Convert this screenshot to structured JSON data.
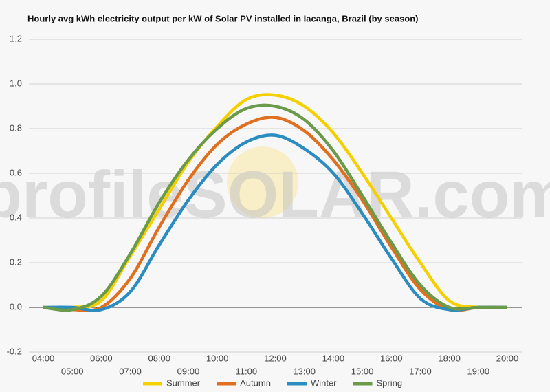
{
  "chart_data": {
    "type": "line",
    "title": "Hourly avg kWh electricity output per kW of Solar PV installed in Iacanga, Brazil (by season)",
    "watermark": "profileSOLAR.com",
    "categories": [
      "04:00",
      "05:00",
      "06:00",
      "07:00",
      "08:00",
      "09:00",
      "10:00",
      "11:00",
      "12:00",
      "13:00",
      "14:00",
      "15:00",
      "16:00",
      "17:00",
      "18:00",
      "19:00",
      "20:00"
    ],
    "series": [
      {
        "name": "Summer",
        "color": "#f5d000",
        "values": [
          0,
          0,
          0.03,
          0.23,
          0.44,
          0.65,
          0.81,
          0.93,
          0.95,
          0.9,
          0.78,
          0.6,
          0.4,
          0.2,
          0.03,
          0,
          0
        ]
      },
      {
        "name": "Autumn",
        "color": "#e07020",
        "values": [
          0,
          -0.01,
          0,
          0.13,
          0.36,
          0.57,
          0.73,
          0.82,
          0.85,
          0.79,
          0.66,
          0.48,
          0.27,
          0.08,
          -0.01,
          0,
          0
        ]
      },
      {
        "name": "Winter",
        "color": "#2a8cbf",
        "values": [
          0,
          0,
          -0.01,
          0.07,
          0.28,
          0.48,
          0.64,
          0.74,
          0.77,
          0.71,
          0.6,
          0.42,
          0.22,
          0.04,
          -0.01,
          0,
          0
        ]
      },
      {
        "name": "Spring",
        "color": "#6a9a4a",
        "values": [
          0,
          -0.01,
          0.05,
          0.24,
          0.47,
          0.66,
          0.8,
          0.89,
          0.9,
          0.84,
          0.7,
          0.5,
          0.29,
          0.1,
          0,
          0,
          0
        ]
      }
    ],
    "ylim": [
      -0.2,
      1.2
    ],
    "yticks": [
      -0.2,
      {
        "value": 0,
        "label": "0.0"
      },
      0.2,
      0.4,
      0.6,
      0.8,
      {
        "value": 1,
        "label": "1.0"
      },
      1.2
    ],
    "grid": true,
    "legend": "bottom"
  }
}
